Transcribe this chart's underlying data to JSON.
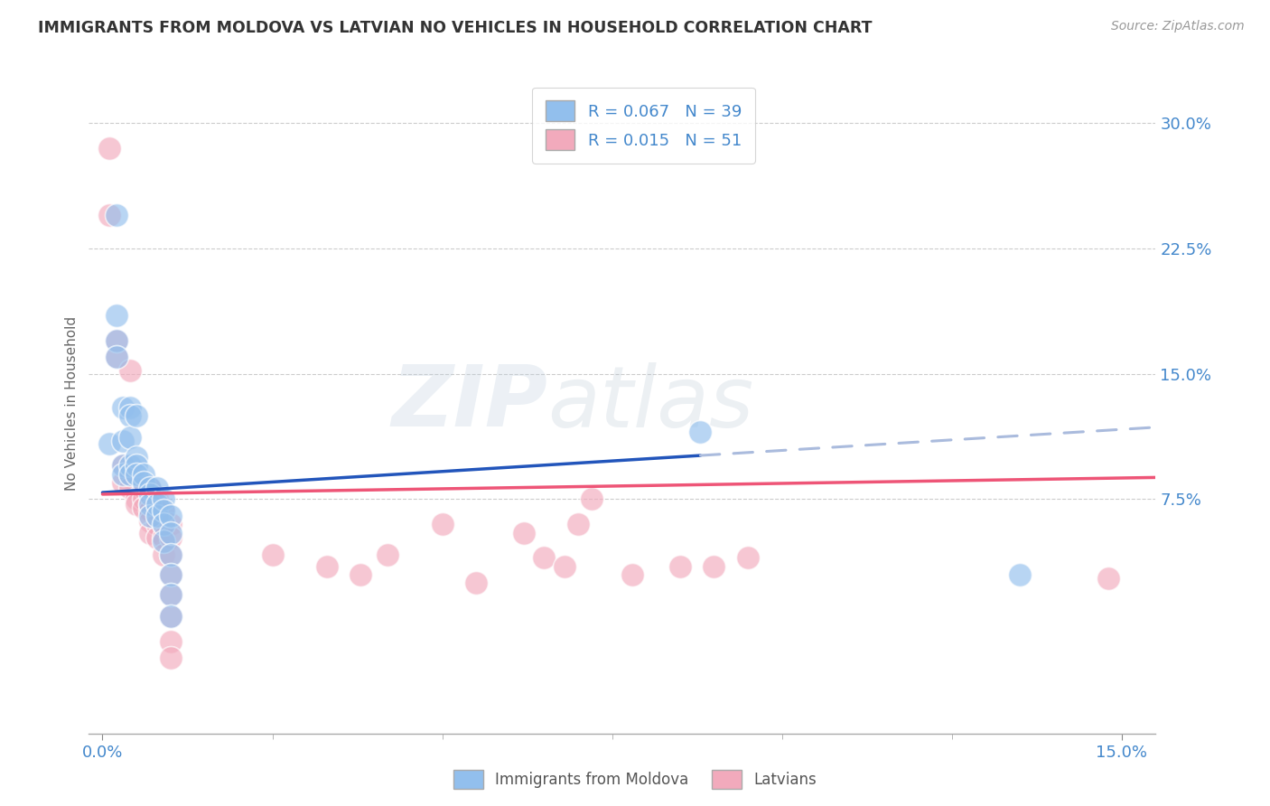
{
  "title": "IMMIGRANTS FROM MOLDOVA VS LATVIAN NO VEHICLES IN HOUSEHOLD CORRELATION CHART",
  "source": "Source: ZipAtlas.com",
  "ylabel": "No Vehicles in Household",
  "legend_blue_r": "R = 0.067",
  "legend_blue_n": "N = 39",
  "legend_pink_r": "R = 0.015",
  "legend_pink_n": "N = 51",
  "legend_blue_label": "Immigrants from Moldova",
  "legend_pink_label": "Latvians",
  "xlim": [
    -0.002,
    0.155
  ],
  "ylim": [
    -0.065,
    0.33
  ],
  "yticks": [
    0.075,
    0.15,
    0.225,
    0.3
  ],
  "ytick_labels": [
    "7.5%",
    "15.0%",
    "22.5%",
    "30.0%"
  ],
  "xtick_show": [
    0.0,
    0.15
  ],
  "xtick_labels_show": [
    "0.0%",
    "15.0%"
  ],
  "blue_color": "#92BFED",
  "pink_color": "#F2AABC",
  "trend_blue_color": "#2255BB",
  "trend_blue_dash_color": "#AABBDD",
  "trend_pink_color": "#EE5577",
  "watermark_zip": "ZIP",
  "watermark_atlas": "atlas",
  "blue_points": [
    [
      0.001,
      0.108
    ],
    [
      0.002,
      0.245
    ],
    [
      0.002,
      0.185
    ],
    [
      0.002,
      0.17
    ],
    [
      0.002,
      0.16
    ],
    [
      0.003,
      0.13
    ],
    [
      0.003,
      0.11
    ],
    [
      0.003,
      0.095
    ],
    [
      0.003,
      0.09
    ],
    [
      0.004,
      0.13
    ],
    [
      0.004,
      0.125
    ],
    [
      0.004,
      0.112
    ],
    [
      0.004,
      0.095
    ],
    [
      0.004,
      0.09
    ],
    [
      0.005,
      0.125
    ],
    [
      0.005,
      0.1
    ],
    [
      0.005,
      0.095
    ],
    [
      0.005,
      0.09
    ],
    [
      0.006,
      0.09
    ],
    [
      0.006,
      0.085
    ],
    [
      0.007,
      0.082
    ],
    [
      0.007,
      0.078
    ],
    [
      0.007,
      0.072
    ],
    [
      0.007,
      0.065
    ],
    [
      0.008,
      0.082
    ],
    [
      0.008,
      0.072
    ],
    [
      0.008,
      0.065
    ],
    [
      0.009,
      0.075
    ],
    [
      0.009,
      0.068
    ],
    [
      0.009,
      0.06
    ],
    [
      0.009,
      0.05
    ],
    [
      0.01,
      0.065
    ],
    [
      0.01,
      0.055
    ],
    [
      0.01,
      0.042
    ],
    [
      0.01,
      0.03
    ],
    [
      0.01,
      0.018
    ],
    [
      0.01,
      0.005
    ],
    [
      0.088,
      0.115
    ],
    [
      0.135,
      0.03
    ]
  ],
  "pink_points": [
    [
      0.001,
      0.285
    ],
    [
      0.001,
      0.245
    ],
    [
      0.002,
      0.17
    ],
    [
      0.002,
      0.16
    ],
    [
      0.003,
      0.095
    ],
    [
      0.003,
      0.085
    ],
    [
      0.004,
      0.152
    ],
    [
      0.004,
      0.09
    ],
    [
      0.004,
      0.082
    ],
    [
      0.005,
      0.075
    ],
    [
      0.005,
      0.072
    ],
    [
      0.006,
      0.082
    ],
    [
      0.006,
      0.075
    ],
    [
      0.006,
      0.07
    ],
    [
      0.007,
      0.082
    ],
    [
      0.007,
      0.072
    ],
    [
      0.007,
      0.068
    ],
    [
      0.007,
      0.062
    ],
    [
      0.007,
      0.055
    ],
    [
      0.008,
      0.075
    ],
    [
      0.008,
      0.068
    ],
    [
      0.008,
      0.06
    ],
    [
      0.008,
      0.052
    ],
    [
      0.009,
      0.068
    ],
    [
      0.009,
      0.06
    ],
    [
      0.009,
      0.052
    ],
    [
      0.009,
      0.042
    ],
    [
      0.01,
      0.06
    ],
    [
      0.01,
      0.052
    ],
    [
      0.01,
      0.042
    ],
    [
      0.01,
      0.03
    ],
    [
      0.01,
      0.018
    ],
    [
      0.01,
      0.005
    ],
    [
      0.01,
      -0.01
    ],
    [
      0.01,
      -0.02
    ],
    [
      0.025,
      0.042
    ],
    [
      0.033,
      0.035
    ],
    [
      0.038,
      0.03
    ],
    [
      0.042,
      0.042
    ],
    [
      0.05,
      0.06
    ],
    [
      0.055,
      0.025
    ],
    [
      0.062,
      0.055
    ],
    [
      0.065,
      0.04
    ],
    [
      0.068,
      0.035
    ],
    [
      0.07,
      0.06
    ],
    [
      0.072,
      0.075
    ],
    [
      0.078,
      0.03
    ],
    [
      0.085,
      0.035
    ],
    [
      0.09,
      0.035
    ],
    [
      0.095,
      0.04
    ],
    [
      0.148,
      0.028
    ]
  ],
  "trend_blue_x0": 0.0,
  "trend_blue_y0": 0.079,
  "trend_blue_x1": 0.155,
  "trend_blue_y1": 0.118,
  "trend_blue_solid_end": 0.088,
  "trend_pink_x0": 0.0,
  "trend_pink_y0": 0.078,
  "trend_pink_x1": 0.155,
  "trend_pink_y1": 0.088
}
